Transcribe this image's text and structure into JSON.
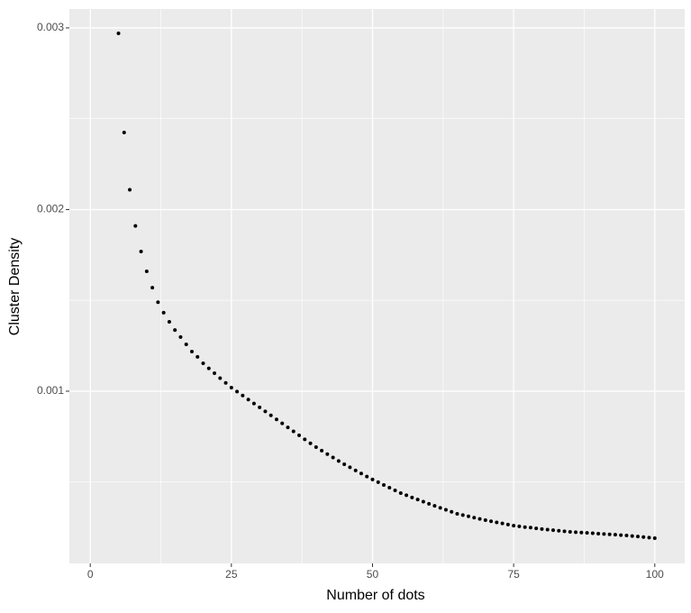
{
  "chart_data": {
    "type": "scatter",
    "x_label": "Number of dots",
    "y_label": "Cluster Density",
    "x": [
      5,
      6,
      7,
      8,
      9,
      10,
      11,
      12,
      13,
      14,
      15,
      16,
      17,
      18,
      19,
      20,
      21,
      22,
      23,
      24,
      25,
      26,
      27,
      28,
      29,
      30,
      31,
      32,
      33,
      34,
      35,
      36,
      37,
      38,
      39,
      40,
      41,
      42,
      43,
      44,
      45,
      46,
      47,
      48,
      49,
      50,
      51,
      52,
      53,
      54,
      55,
      56,
      57,
      58,
      59,
      60,
      61,
      62,
      63,
      64,
      65,
      66,
      67,
      68,
      69,
      70,
      71,
      72,
      73,
      74,
      75,
      76,
      77,
      78,
      79,
      80,
      81,
      82,
      83,
      84,
      85,
      86,
      87,
      88,
      89,
      90,
      91,
      92,
      93,
      94,
      95,
      96,
      97,
      98,
      99,
      100
    ],
    "values": [
      0.00297,
      0.002424,
      0.002109,
      0.00191,
      0.001769,
      0.00166,
      0.00157,
      0.00149,
      0.001432,
      0.001382,
      0.001337,
      0.001298,
      0.001258,
      0.001218,
      0.001189,
      0.001154,
      0.001126,
      0.001099,
      0.001072,
      0.001046,
      0.00102,
      0.000998,
      0.000976,
      0.000954,
      0.000932,
      0.000911,
      0.000889,
      0.000867,
      0.000845,
      0.000823,
      0.000801,
      0.000779,
      0.000757,
      0.000735,
      0.000713,
      0.000692,
      0.000673,
      0.000654,
      0.000635,
      0.000616,
      0.000598,
      0.000581,
      0.000564,
      0.000547,
      0.00053,
      0.000514,
      0.000499,
      0.000484,
      0.000469,
      0.000454,
      0.000439,
      0.000427,
      0.000415,
      0.000404,
      0.000392,
      0.00038,
      0.000369,
      0.000358,
      0.000347,
      0.000336,
      0.000325,
      0.000318,
      0.000311,
      0.000304,
      0.000297,
      0.00029,
      0.000284,
      0.000278,
      0.000272,
      0.000266,
      0.00026,
      0.000256,
      0.000252,
      0.000249,
      0.000245,
      0.000241,
      0.000238,
      0.000235,
      0.000232,
      0.000229,
      0.000226,
      0.000224,
      0.000222,
      0.00022,
      0.000218,
      0.000216,
      0.000214,
      0.000212,
      0.00021,
      0.000208,
      0.000206,
      0.000203,
      0.0002,
      0.000197,
      0.000194,
      0.000191
    ],
    "color": "#000000",
    "xlim": [
      -3.7,
      105.3
    ],
    "xticks": [
      0,
      25,
      50,
      75,
      100
    ],
    "minor_xticks": [
      12.5,
      37.5,
      62.5,
      87.5
    ],
    "ylim": [
      5.2e-05,
      0.003104
    ],
    "yticks": [
      0.001,
      0.002,
      0.003
    ],
    "minor_yticks": [
      0.0005,
      0.0015,
      0.0025
    ],
    "grid": true
  }
}
